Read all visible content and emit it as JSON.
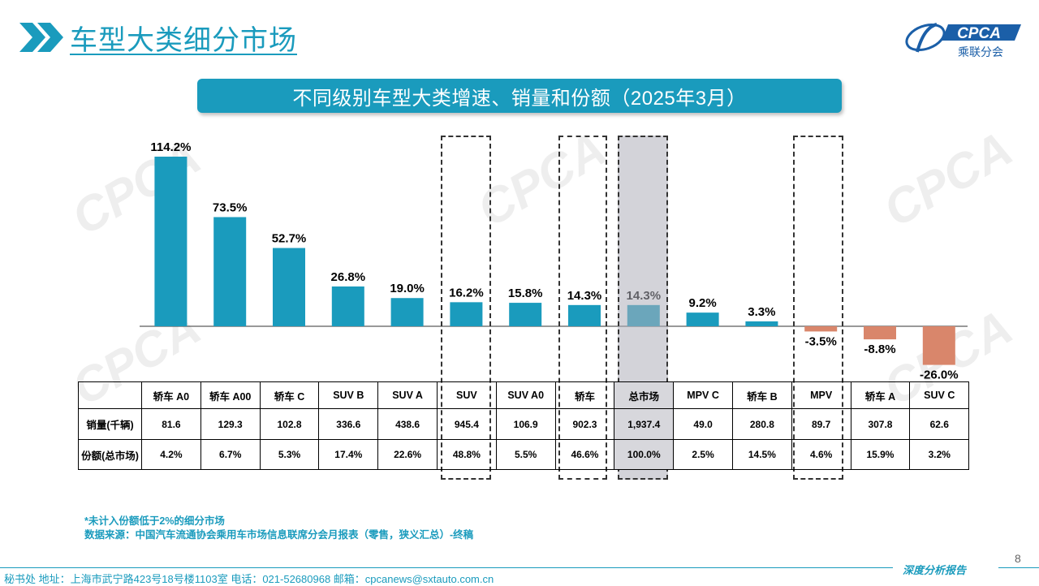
{
  "header": {
    "title": "车型大类细分市场",
    "logo_text": "CPCA",
    "logo_subtext": "乘联分会",
    "accent_color": "#1a9bbd"
  },
  "banner": {
    "title": "不同级别车型大类增速、销量和份额（2025年3月）"
  },
  "chart_data": {
    "type": "bar",
    "categories": [
      "轿车 A0",
      "轿车 A00",
      "轿车 C",
      "SUV B",
      "SUV A",
      "SUV",
      "SUV A0",
      "轿车",
      "总市场",
      "MPV C",
      "轿车 B",
      "MPV",
      "轿车 A",
      "SUV C"
    ],
    "values": [
      114.2,
      73.5,
      52.7,
      26.8,
      19.0,
      16.2,
      15.8,
      14.3,
      14.3,
      9.2,
      3.3,
      -3.5,
      -8.8,
      -26.0
    ],
    "value_labels": [
      "114.2%",
      "73.5%",
      "52.7%",
      "26.8%",
      "19.0%",
      "16.2%",
      "15.8%",
      "14.3%",
      "14.3%",
      "9.2%",
      "3.3%",
      "-3.5%",
      "-8.8%",
      "-26.0%"
    ],
    "positive_color": "#1a9bbd",
    "negative_color": "#d9866b",
    "ylim": [
      -30,
      120
    ],
    "grid": false,
    "highlighted_categories": [
      "SUV",
      "轿车",
      "总市场",
      "MPV"
    ]
  },
  "table": {
    "rows": [
      {
        "label": "销量(千辆)",
        "values": [
          "81.6",
          "129.3",
          "102.8",
          "336.6",
          "438.6",
          "945.4",
          "106.9",
          "902.3",
          "1,937.4",
          "49.0",
          "280.8",
          "89.7",
          "307.8",
          "62.6"
        ]
      },
      {
        "label": "份额(总市场)",
        "values": [
          "4.2%",
          "6.7%",
          "5.3%",
          "17.4%",
          "22.6%",
          "48.8%",
          "5.5%",
          "46.6%",
          "100.0%",
          "2.5%",
          "14.5%",
          "4.6%",
          "15.9%",
          "3.2%"
        ]
      }
    ]
  },
  "footnote": {
    "line1": "*未计入份额低于2%的细分市场",
    "line2": "数据来源：中国汽车流通协会乘用车市场信息联席分会月报表（零售，狭义汇总）-终稿"
  },
  "footer": {
    "contact": "秘书处   地址：上海市武宁路423号18号楼1103室  电话：021-52680968   邮箱：cpcanews@sxtauto.com.cn",
    "report_tag": "深度分析报告",
    "page_number": "8"
  }
}
